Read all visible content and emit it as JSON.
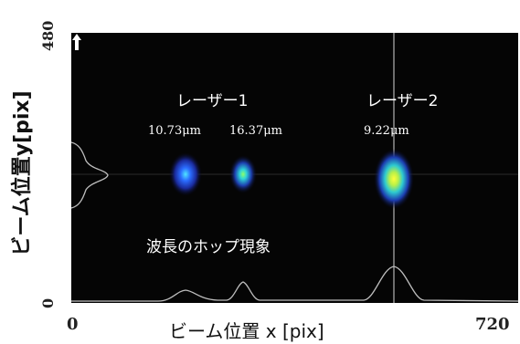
{
  "figure": {
    "y_axis_label": "ビーム位置y[pix]",
    "x_axis_label": "ビーム位置 x [pix]",
    "y_ticks": [
      "480",
      "0"
    ],
    "x_ticks": [
      "0",
      "720"
    ],
    "laser1_label": "レーザー1",
    "laser2_label": "レーザー2",
    "spot_widths": [
      "10.73μm",
      "16.37μm",
      "9.22μm"
    ],
    "hop_label": "波長のホップ現象"
  }
}
